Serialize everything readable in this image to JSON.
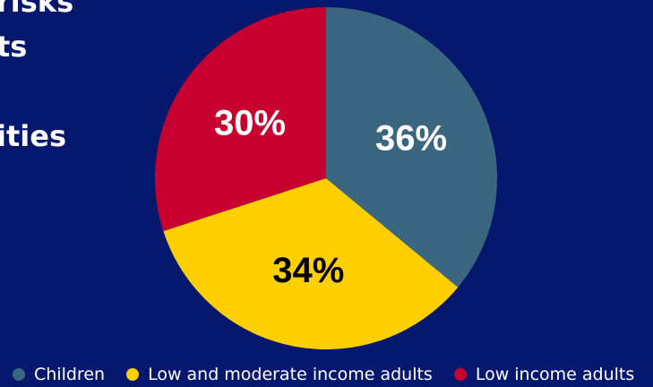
{
  "headline_fragments": [
    "risks",
    "ts",
    "ities"
  ],
  "chart_data": {
    "type": "pie",
    "title": "",
    "categories": [
      "Children",
      "Low and moderate income adults",
      "Low income adults"
    ],
    "values": [
      36,
      34,
      30
    ],
    "labels": [
      "36%",
      "34%",
      "30%"
    ],
    "colors": [
      "#3b6680",
      "#ffcf00",
      "#c8002f"
    ],
    "label_colors": [
      "#ffffff",
      "#000000",
      "#ffffff"
    ],
    "start": "12 o'clock",
    "direction": "clockwise",
    "legend_position": "bottom"
  },
  "legend": {
    "items": [
      {
        "label": "Children",
        "color": "#3b6680"
      },
      {
        "label": "Low and moderate income adults",
        "color": "#ffcf00"
      },
      {
        "label": "Low income adults",
        "color": "#c8002f"
      }
    ]
  }
}
